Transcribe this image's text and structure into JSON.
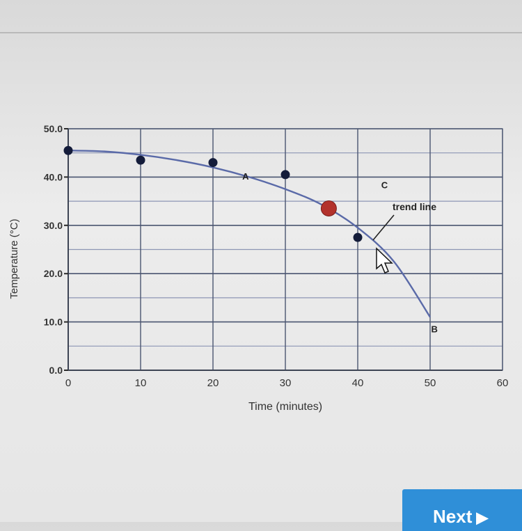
{
  "chart_data": {
    "type": "scatter",
    "xlabel": "Time (minutes)",
    "ylabel": "Temperature (°C)",
    "xlim": [
      0,
      60
    ],
    "ylim": [
      0,
      50
    ],
    "x_ticks": [
      "0",
      "10",
      "20",
      "30",
      "40",
      "50",
      "60"
    ],
    "y_ticks": [
      "0.0",
      "10.0",
      "20.0",
      "30.0",
      "40.0",
      "50.0"
    ],
    "grid": true,
    "points": [
      {
        "x": 0,
        "y": 45.5
      },
      {
        "x": 10,
        "y": 43.5
      },
      {
        "x": 20,
        "y": 43
      },
      {
        "x": 30,
        "y": 40.5
      },
      {
        "x": 40,
        "y": 27.5
      }
    ],
    "highlighted_point": {
      "x": 36,
      "y": 33.5,
      "color": "#b3322c"
    },
    "trend_line": {
      "label": "trend line",
      "points": [
        {
          "x": 0,
          "y": 45.5
        },
        {
          "x": 5,
          "y": 45.3
        },
        {
          "x": 10,
          "y": 44.6
        },
        {
          "x": 15,
          "y": 43.5
        },
        {
          "x": 20,
          "y": 42
        },
        {
          "x": 25,
          "y": 40
        },
        {
          "x": 30,
          "y": 37.5
        },
        {
          "x": 35,
          "y": 34.3
        },
        {
          "x": 40,
          "y": 29.5
        },
        {
          "x": 45,
          "y": 22.5
        },
        {
          "x": 50,
          "y": 11
        }
      ]
    },
    "annotations": [
      {
        "text": "A",
        "x": 24.5,
        "y": 40.2
      },
      {
        "text": "B",
        "x": 50.6,
        "y": 8.6
      },
      {
        "text": "C",
        "x": 43.7,
        "y": 38.4
      }
    ]
  },
  "colors": {
    "axis": "#2a2a2a",
    "grid_dark": "#4a5570",
    "grid_light": "#8d96b4",
    "curve": "#5a6aa8",
    "point": "#141c3a",
    "next_button": "#2f8fd8"
  },
  "next_button": {
    "label": "Next",
    "icon": "play-arrow-icon"
  }
}
